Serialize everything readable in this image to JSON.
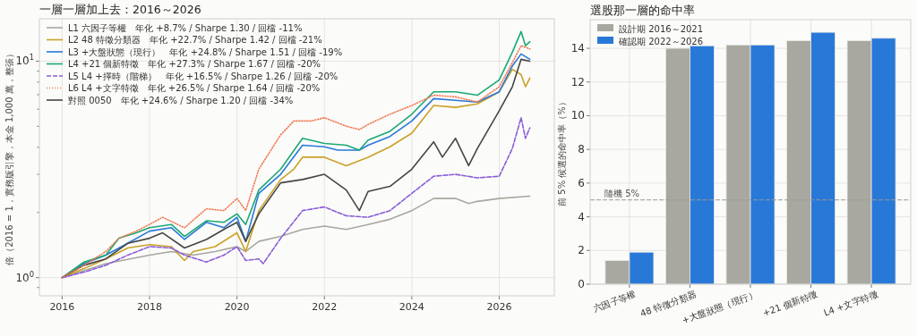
{
  "chart_data": [
    {
      "type": "line",
      "title": "一層一層加上去：2016～2026",
      "ylabel": "倍（2016 = 1，實務版引擎，本金 1,000 萬，整張）",
      "log": "y",
      "grid": true,
      "legend": "top left",
      "xlim": [
        2015.48,
        2027.26
      ],
      "xticks": [
        2016,
        2018,
        2020,
        2022,
        2024,
        2026
      ],
      "ylim": [
        0.824,
        15.7
      ],
      "yticks": [
        {
          "value": 0.9,
          "label": null
        },
        {
          "value": 1,
          "label": "10$^{0}$"
        },
        {
          "value": 2,
          "label": null
        },
        {
          "value": 3,
          "label": null
        },
        {
          "value": 4,
          "label": null
        },
        {
          "value": 5,
          "label": null
        },
        {
          "value": 6,
          "label": null
        },
        {
          "value": 7,
          "label": null
        },
        {
          "value": 8,
          "label": null
        },
        {
          "value": 9,
          "label": null
        },
        {
          "value": 10,
          "label": "10$^{1}$"
        }
      ],
      "series": [
        {
          "name": "L1 六因子等權　年化 +8.7% / Sharpe 1.30 / 回檔 -11%",
          "color": "#a8a8a0",
          "line_style": "solid",
          "x": [
            2016,
            2017,
            2018,
            2018.5,
            2019,
            2019.5,
            2020,
            2020.2,
            2020.5,
            2021,
            2021.5,
            2022,
            2022.5,
            2023,
            2023.5,
            2024,
            2024.5,
            2025,
            2025.3,
            2025.5,
            2026,
            2026.7
          ],
          "values": [
            1.0,
            1.16,
            1.27,
            1.32,
            1.27,
            1.32,
            1.39,
            1.32,
            1.47,
            1.55,
            1.67,
            1.73,
            1.67,
            1.76,
            1.86,
            2.04,
            2.32,
            2.32,
            2.2,
            2.25,
            2.32,
            2.38
          ]
        },
        {
          "name": "L2 48 特徵分類器　年化 +22.7% / Sharpe 1.42 / 回檔 -21%",
          "color": "#c9a227",
          "line_style": "solid",
          "x": [
            2016,
            2016.5,
            2017,
            2017.5,
            2018,
            2018.5,
            2018.8,
            2019,
            2019.5,
            2020,
            2020.2,
            2020.5,
            2021,
            2021.3,
            2021.5,
            2022,
            2022.5,
            2023,
            2023.5,
            2024,
            2024.5,
            2025,
            2025.5,
            2026,
            2026.3,
            2026.5,
            2026.6,
            2026.7
          ],
          "values": [
            1.0,
            1.1,
            1.22,
            1.37,
            1.42,
            1.39,
            1.2,
            1.32,
            1.39,
            1.61,
            1.32,
            2.04,
            2.84,
            3.17,
            3.6,
            3.6,
            3.29,
            3.6,
            4.02,
            4.65,
            6.24,
            6.12,
            6.35,
            7.22,
            9.16,
            8.67,
            7.62,
            8.36
          ]
        },
        {
          "name": "L3 +大盤狀態（現行）　年化 +24.8% / Sharpe 1.51 / 回檔 -19%",
          "color": "#2878d8",
          "line_style": "solid",
          "x": [
            2016,
            2016.5,
            2017,
            2017.5,
            2018,
            2018.5,
            2018.8,
            2019.3,
            2019.7,
            2020,
            2020.2,
            2020.5,
            2021,
            2021.5,
            2022,
            2022.3,
            2022.8,
            2023,
            2023.5,
            2024,
            2024.5,
            2025,
            2025.5,
            2026,
            2026.3,
            2026.5,
            2026.7
          ],
          "values": [
            1.0,
            1.16,
            1.27,
            1.44,
            1.64,
            1.7,
            1.5,
            1.8,
            1.7,
            1.9,
            1.47,
            2.45,
            3.0,
            4.09,
            4.02,
            3.88,
            3.88,
            4.09,
            4.49,
            5.29,
            6.71,
            6.59,
            6.47,
            7.22,
            9.5,
            10.8,
            10.2
          ]
        },
        {
          "name": "L4 +21 個新特徵　年化 +27.3% / Sharpe 1.67 / 回檔 -20%",
          "color": "#1aa874",
          "line_style": "solid",
          "x": [
            2016,
            2016.5,
            2017,
            2017.3,
            2017.7,
            2018,
            2018.5,
            2018.8,
            2019.3,
            2019.7,
            2020,
            2020.2,
            2020.5,
            2021,
            2021.5,
            2022,
            2022.5,
            2022.8,
            2023,
            2023.5,
            2024,
            2024.5,
            2025,
            2025.5,
            2026,
            2026.3,
            2026.5,
            2026.6,
            2026.7
          ],
          "values": [
            1.0,
            1.18,
            1.27,
            1.52,
            1.61,
            1.7,
            1.76,
            1.55,
            1.83,
            1.8,
            1.97,
            1.76,
            2.54,
            3.17,
            4.4,
            4.17,
            4.09,
            3.88,
            4.32,
            4.74,
            5.69,
            7.22,
            7.22,
            6.96,
            8.2,
            11.0,
            13.7,
            11.8,
            12.3
          ]
        },
        {
          "name": "L5 L4 +擇時（階梯）　年化 +16.5% / Sharpe 1.26 / 回檔 -20%",
          "color": "#8a5cd8",
          "line_style": "dashed",
          "x": [
            2016,
            2016.5,
            2017,
            2017.5,
            2018,
            2018.5,
            2018.8,
            2019.3,
            2019.7,
            2020,
            2020.2,
            2020.5,
            2020.6,
            2021,
            2021.5,
            2022,
            2022.5,
            2023,
            2023.5,
            2024,
            2024.5,
            2025,
            2025.5,
            2026,
            2026.3,
            2026.5,
            2026.6,
            2026.7
          ],
          "values": [
            1.0,
            1.06,
            1.14,
            1.27,
            1.39,
            1.37,
            1.27,
            1.18,
            1.27,
            1.39,
            1.2,
            1.22,
            1.16,
            1.52,
            2.04,
            2.12,
            1.93,
            1.9,
            2.04,
            2.45,
            2.94,
            3.0,
            2.89,
            2.94,
            3.95,
            5.48,
            4.4,
            4.92
          ]
        },
        {
          "name": "L6 L4 +文字特徵　年化 +26.5% / Sharpe 1.64 / 回檔 -20%",
          "color": "#f07850",
          "line_style": "dotted",
          "x": [
            2016,
            2016.5,
            2017,
            2017.3,
            2017.7,
            2018,
            2018.3,
            2018.8,
            2019.3,
            2019.7,
            2020,
            2020.2,
            2020.5,
            2021,
            2021.3,
            2021.7,
            2022,
            2022.5,
            2022.8,
            2023,
            2023.5,
            2024,
            2024.5,
            2025,
            2025.5,
            2026,
            2026.3,
            2026.5,
            2026.7
          ],
          "values": [
            1.0,
            1.14,
            1.32,
            1.52,
            1.64,
            1.76,
            1.9,
            1.7,
            2.08,
            2.04,
            2.32,
            2.04,
            3.17,
            4.57,
            5.29,
            5.29,
            5.48,
            5.01,
            4.83,
            5.1,
            5.69,
            6.24,
            6.96,
            6.84,
            6.47,
            7.62,
            9.85,
            11.8,
            11.4
          ]
        },
        {
          "name": "對照 0050　年化 +24.6% / Sharpe 1.20 / 回檔 -34%",
          "color": "#454545",
          "line_style": "solid",
          "x": [
            2016,
            2016.5,
            2017,
            2017.5,
            2018,
            2018.3,
            2018.8,
            2019.3,
            2019.7,
            2020,
            2020.2,
            2020.5,
            2021,
            2021.5,
            2022,
            2022.5,
            2022.8,
            2023,
            2023.5,
            2024,
            2024.5,
            2024.7,
            2025,
            2025.3,
            2025.5,
            2026,
            2026.3,
            2026.5,
            2026.7
          ],
          "values": [
            1.0,
            1.14,
            1.22,
            1.44,
            1.52,
            1.61,
            1.37,
            1.5,
            1.67,
            1.8,
            1.47,
            1.97,
            2.74,
            2.84,
            3.0,
            2.54,
            2.04,
            2.5,
            2.64,
            3.17,
            4.24,
            3.6,
            4.4,
            3.29,
            3.95,
            5.9,
            7.62,
            10.2,
            10.0
          ]
        }
      ]
    },
    {
      "type": "bar",
      "title": "選股那一層的命中率",
      "ylabel": "前 5% 候選的命中率（%）",
      "grid": true,
      "legend": "top left",
      "categories": [
        "六因子等權",
        "48 特徵分類器",
        "+大盤狀態（現行）",
        "+21 個新特徵",
        "L4 +文字特徵"
      ],
      "ylim": [
        0,
        15.7
      ],
      "yticks": [
        0,
        2,
        4,
        6,
        8,
        10,
        12,
        14
      ],
      "ref_lines": [
        {
          "axis": "y",
          "value": 5,
          "label": "隨機 5%",
          "color": "#999999",
          "line_style": "dashed"
        }
      ],
      "series": [
        {
          "name": "設計期 2016～2021",
          "color": "#a8a8a0",
          "values": [
            1.4,
            14.0,
            14.2,
            14.45,
            14.45
          ]
        },
        {
          "name": "確認期 2022～2026",
          "color": "#2878d8",
          "values": [
            1.9,
            14.15,
            14.2,
            14.95,
            14.6
          ]
        }
      ]
    }
  ]
}
